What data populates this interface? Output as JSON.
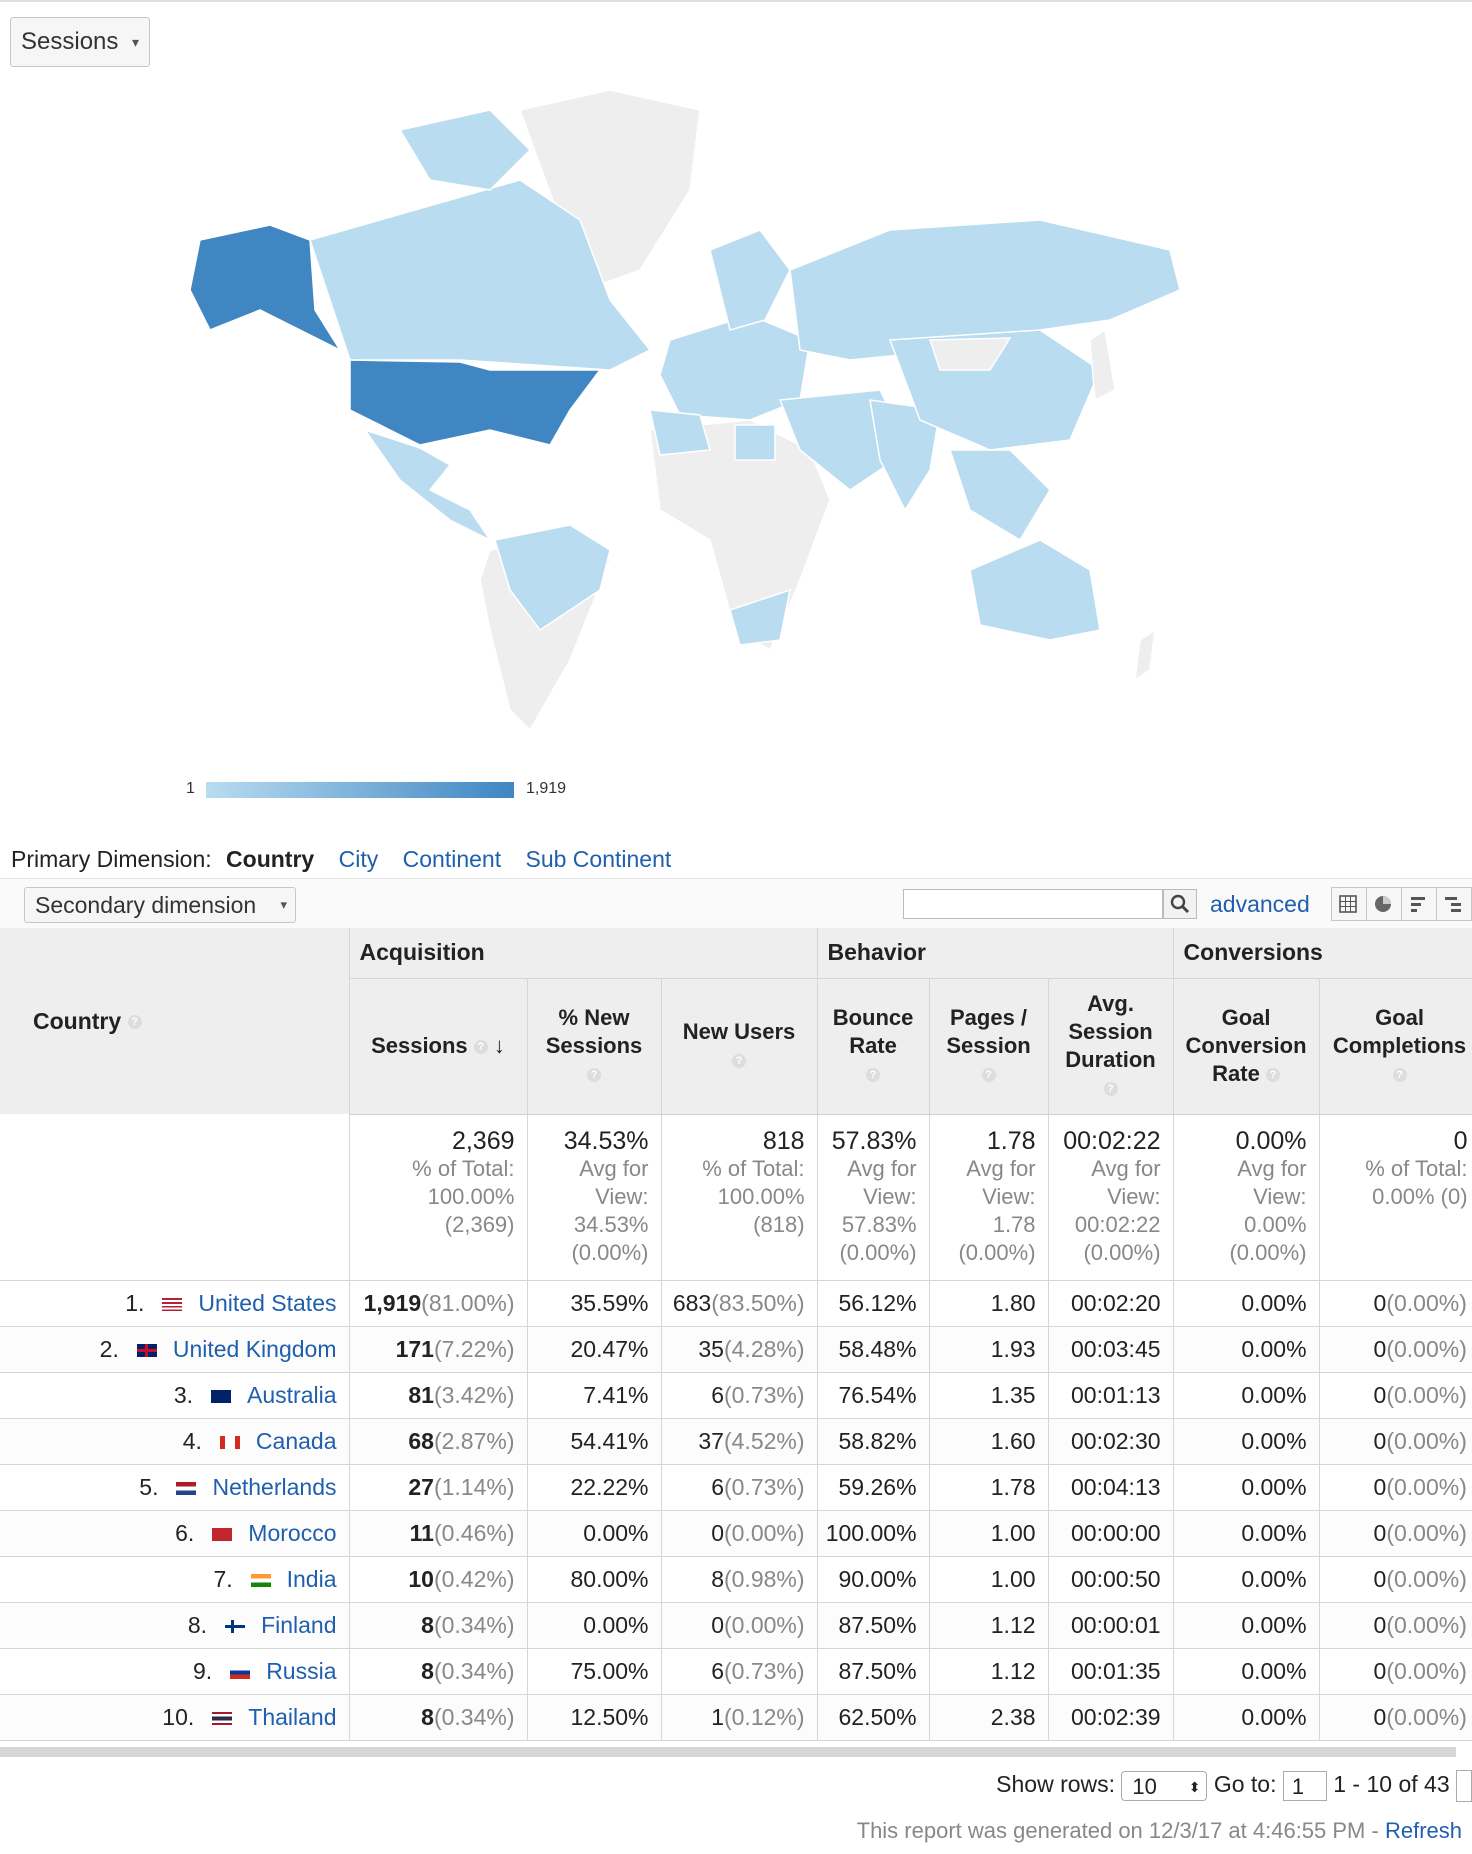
{
  "metric_selector": {
    "label": "Sessions"
  },
  "map": {
    "legend_min": "1",
    "legend_max": "1,919",
    "colors": {
      "none": "#eeeeee",
      "low": "#b9dcf0",
      "mid": "#8ec3e6",
      "high": "#3f86c3",
      "border": "#ffffff"
    }
  },
  "primary_dimension": {
    "label": "Primary Dimension:",
    "current": "Country",
    "options": [
      "City",
      "Continent",
      "Sub Continent"
    ]
  },
  "toolbar": {
    "secondary_dimension": "Secondary dimension",
    "advanced": "advanced"
  },
  "table": {
    "groups": [
      "Acquisition",
      "Behavior",
      "Conversions"
    ],
    "country_header": "Country",
    "columns": [
      {
        "label": "Sessions"
      },
      {
        "label": "% New Sessions"
      },
      {
        "label": "New Users"
      },
      {
        "label": "Bounce Rate"
      },
      {
        "label": "Pages / Session"
      },
      {
        "label": "Avg. Session Duration"
      },
      {
        "label": "Goal Conversion Rate"
      },
      {
        "label": "Goal Completions"
      }
    ],
    "totals": [
      {
        "value": "2,369",
        "sub": [
          "% of Total:",
          "100.00%",
          "(2,369)"
        ]
      },
      {
        "value": "34.53%",
        "sub": [
          "Avg for",
          "View:",
          "34.53%",
          "(0.00%)"
        ]
      },
      {
        "value": "818",
        "sub": [
          "% of Total:",
          "100.00%",
          "(818)"
        ]
      },
      {
        "value": "57.83%",
        "sub": [
          "Avg for",
          "View:",
          "57.83%",
          "(0.00%)"
        ]
      },
      {
        "value": "1.78",
        "sub": [
          "Avg for",
          "View:",
          "1.78",
          "(0.00%)"
        ]
      },
      {
        "value": "00:02:22",
        "sub": [
          "Avg for",
          "View:",
          "00:02:22",
          "(0.00%)"
        ]
      },
      {
        "value": "0.00%",
        "sub": [
          "Avg for",
          "View:",
          "0.00%",
          "(0.00%)"
        ]
      },
      {
        "value": "0",
        "sub": [
          "% of Total:",
          "0.00% (0)"
        ]
      }
    ],
    "rows": [
      {
        "rank": "1.",
        "country": "United States",
        "flag": "us",
        "sessions": "1,919",
        "sessions_pct": "(81.00%)",
        "new_sessions": "35.59%",
        "new_users": "683",
        "new_users_pct": "(83.50%)",
        "bounce": "56.12%",
        "pages": "1.80",
        "duration": "00:02:20",
        "conv_rate": "0.00%",
        "completions": "0",
        "completions_pct": "(0.00%)"
      },
      {
        "rank": "2.",
        "country": "United Kingdom",
        "flag": "gb",
        "sessions": "171",
        "sessions_pct": "(7.22%)",
        "new_sessions": "20.47%",
        "new_users": "35",
        "new_users_pct": "(4.28%)",
        "bounce": "58.48%",
        "pages": "1.93",
        "duration": "00:03:45",
        "conv_rate": "0.00%",
        "completions": "0",
        "completions_pct": "(0.00%)"
      },
      {
        "rank": "3.",
        "country": "Australia",
        "flag": "au",
        "sessions": "81",
        "sessions_pct": "(3.42%)",
        "new_sessions": "7.41%",
        "new_users": "6",
        "new_users_pct": "(0.73%)",
        "bounce": "76.54%",
        "pages": "1.35",
        "duration": "00:01:13",
        "conv_rate": "0.00%",
        "completions": "0",
        "completions_pct": "(0.00%)"
      },
      {
        "rank": "4.",
        "country": "Canada",
        "flag": "ca",
        "sessions": "68",
        "sessions_pct": "(2.87%)",
        "new_sessions": "54.41%",
        "new_users": "37",
        "new_users_pct": "(4.52%)",
        "bounce": "58.82%",
        "pages": "1.60",
        "duration": "00:02:30",
        "conv_rate": "0.00%",
        "completions": "0",
        "completions_pct": "(0.00%)"
      },
      {
        "rank": "5.",
        "country": "Netherlands",
        "flag": "nl",
        "sessions": "27",
        "sessions_pct": "(1.14%)",
        "new_sessions": "22.22%",
        "new_users": "6",
        "new_users_pct": "(0.73%)",
        "bounce": "59.26%",
        "pages": "1.78",
        "duration": "00:04:13",
        "conv_rate": "0.00%",
        "completions": "0",
        "completions_pct": "(0.00%)"
      },
      {
        "rank": "6.",
        "country": "Morocco",
        "flag": "ma",
        "sessions": "11",
        "sessions_pct": "(0.46%)",
        "new_sessions": "0.00%",
        "new_users": "0",
        "new_users_pct": "(0.00%)",
        "bounce": "100.00%",
        "pages": "1.00",
        "duration": "00:00:00",
        "conv_rate": "0.00%",
        "completions": "0",
        "completions_pct": "(0.00%)"
      },
      {
        "rank": "7.",
        "country": "India",
        "flag": "in",
        "sessions": "10",
        "sessions_pct": "(0.42%)",
        "new_sessions": "80.00%",
        "new_users": "8",
        "new_users_pct": "(0.98%)",
        "bounce": "90.00%",
        "pages": "1.00",
        "duration": "00:00:50",
        "conv_rate": "0.00%",
        "completions": "0",
        "completions_pct": "(0.00%)"
      },
      {
        "rank": "8.",
        "country": "Finland",
        "flag": "fi",
        "sessions": "8",
        "sessions_pct": "(0.34%)",
        "new_sessions": "0.00%",
        "new_users": "0",
        "new_users_pct": "(0.00%)",
        "bounce": "87.50%",
        "pages": "1.12",
        "duration": "00:00:01",
        "conv_rate": "0.00%",
        "completions": "0",
        "completions_pct": "(0.00%)"
      },
      {
        "rank": "9.",
        "country": "Russia",
        "flag": "ru",
        "sessions": "8",
        "sessions_pct": "(0.34%)",
        "new_sessions": "75.00%",
        "new_users": "6",
        "new_users_pct": "(0.73%)",
        "bounce": "87.50%",
        "pages": "1.12",
        "duration": "00:01:35",
        "conv_rate": "0.00%",
        "completions": "0",
        "completions_pct": "(0.00%)"
      },
      {
        "rank": "10.",
        "country": "Thailand",
        "flag": "th",
        "sessions": "8",
        "sessions_pct": "(0.34%)",
        "new_sessions": "12.50%",
        "new_users": "1",
        "new_users_pct": "(0.12%)",
        "bounce": "62.50%",
        "pages": "2.38",
        "duration": "00:02:39",
        "conv_rate": "0.00%",
        "completions": "0",
        "completions_pct": "(0.00%)"
      }
    ]
  },
  "pagination": {
    "show_rows_label": "Show rows:",
    "show_rows_value": "10",
    "goto_label": "Go to:",
    "goto_value": "1",
    "range": "1 - 10 of 43"
  },
  "footer": {
    "generated": "This report was generated on 12/3/17 at 4:46:55 PM -",
    "refresh": "Refresh"
  }
}
